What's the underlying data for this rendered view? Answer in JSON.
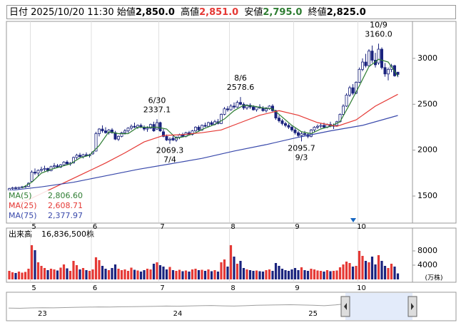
{
  "header": {
    "date_label": "日付",
    "date": "2025/10/20 11:30",
    "open_label": "始値",
    "open": "2,850.0",
    "high_label": "高値",
    "high": "2,851.0",
    "low_label": "安値",
    "low": "2,795.0",
    "close_label": "終値",
    "close": "2,825.0"
  },
  "chart_data": [
    {
      "type": "candlestick",
      "up_color": "#ffffff",
      "down_color": "#1a237e",
      "ylim": [
        1213,
        3403
      ],
      "yticks": [
        1500,
        2000,
        2500,
        3000
      ],
      "categories": [
        null,
        null,
        null,
        null,
        null,
        null,
        null,
        "5",
        null,
        null,
        null,
        null,
        null,
        null,
        null,
        null,
        null,
        null,
        null,
        null,
        null,
        null,
        null,
        null,
        null,
        null,
        "6",
        null,
        null,
        null,
        null,
        null,
        null,
        null,
        null,
        null,
        null,
        null,
        null,
        null,
        null,
        null,
        null,
        null,
        null,
        null,
        null,
        "7",
        null,
        null,
        null,
        null,
        null,
        null,
        null,
        null,
        null,
        null,
        null,
        null,
        null,
        null,
        null,
        null,
        null,
        null,
        null,
        null,
        null,
        "8",
        null,
        null,
        null,
        null,
        null,
        null,
        null,
        null,
        null,
        null,
        null,
        null,
        null,
        null,
        null,
        null,
        null,
        null,
        null,
        "9",
        null,
        null,
        null,
        null,
        null,
        null,
        null,
        null,
        null,
        null,
        null,
        null,
        null,
        null,
        null,
        null,
        null,
        null,
        null,
        "10",
        null,
        null,
        null,
        null,
        null,
        null,
        null,
        null,
        null,
        null,
        null,
        null
      ],
      "ohlc": [
        [
          1560,
          1590,
          1550,
          1580
        ],
        [
          1580,
          1600,
          1570,
          1590
        ],
        [
          1590,
          1605,
          1575,
          1585
        ],
        [
          1585,
          1600,
          1570,
          1595
        ],
        [
          1595,
          1610,
          1585,
          1600
        ],
        [
          1600,
          1615,
          1590,
          1605
        ],
        [
          1605,
          1650,
          1600,
          1640
        ],
        [
          1660,
          1780,
          1655,
          1760
        ],
        [
          1760,
          1800,
          1730,
          1750
        ],
        [
          1750,
          1790,
          1720,
          1780
        ],
        [
          1780,
          1820,
          1760,
          1790
        ],
        [
          1790,
          1830,
          1770,
          1800
        ],
        [
          1800,
          1810,
          1760,
          1775
        ],
        [
          1775,
          1830,
          1770,
          1820
        ],
        [
          1820,
          1860,
          1800,
          1830
        ],
        [
          1830,
          1850,
          1810,
          1815
        ],
        [
          1815,
          1850,
          1805,
          1840
        ],
        [
          1840,
          1880,
          1830,
          1870
        ],
        [
          1870,
          1890,
          1840,
          1850
        ],
        [
          1850,
          1870,
          1830,
          1860
        ],
        [
          1860,
          1930,
          1855,
          1920
        ],
        [
          1920,
          1960,
          1900,
          1945
        ],
        [
          1945,
          1970,
          1920,
          1930
        ],
        [
          1930,
          1960,
          1910,
          1950
        ],
        [
          1950,
          1975,
          1930,
          1940
        ],
        [
          1940,
          1960,
          1920,
          1950
        ],
        [
          1960,
          1990,
          1950,
          1980
        ],
        [
          1990,
          2200,
          1985,
          2180
        ],
        [
          2180,
          2240,
          2150,
          2230
        ],
        [
          2230,
          2270,
          2190,
          2210
        ],
        [
          2210,
          2250,
          2180,
          2190
        ],
        [
          2190,
          2230,
          2170,
          2220
        ],
        [
          2220,
          2240,
          2180,
          2190
        ],
        [
          2190,
          2210,
          2110,
          2120
        ],
        [
          2120,
          2160,
          2100,
          2150
        ],
        [
          2150,
          2200,
          2140,
          2190
        ],
        [
          2190,
          2230,
          2170,
          2210
        ],
        [
          2210,
          2250,
          2190,
          2240
        ],
        [
          2240,
          2280,
          2220,
          2260
        ],
        [
          2260,
          2300,
          2240,
          2250
        ],
        [
          2250,
          2280,
          2230,
          2270
        ],
        [
          2270,
          2290,
          2240,
          2250
        ],
        [
          2250,
          2270,
          2210,
          2230
        ],
        [
          2230,
          2260,
          2200,
          2240
        ],
        [
          2240,
          2290,
          2230,
          2280
        ],
        [
          2280,
          2310,
          2200,
          2210
        ],
        [
          2230,
          2337.1,
          2220,
          2300
        ],
        [
          2300,
          2310,
          2200,
          2210
        ],
        [
          2200,
          2230,
          2140,
          2150
        ],
        [
          2150,
          2170,
          2100,
          2110
        ],
        [
          2110,
          2140,
          2069.3,
          2120
        ],
        [
          2130,
          2160,
          2100,
          2110
        ],
        [
          2110,
          2150,
          2090,
          2140
        ],
        [
          2140,
          2180,
          2120,
          2170
        ],
        [
          2170,
          2190,
          2140,
          2150
        ],
        [
          2150,
          2200,
          2140,
          2190
        ],
        [
          2190,
          2210,
          2160,
          2170
        ],
        [
          2170,
          2220,
          2160,
          2210
        ],
        [
          2210,
          2260,
          2200,
          2250
        ],
        [
          2250,
          2270,
          2200,
          2220
        ],
        [
          2220,
          2280,
          2210,
          2270
        ],
        [
          2270,
          2300,
          2250,
          2260
        ],
        [
          2260,
          2310,
          2250,
          2300
        ],
        [
          2300,
          2320,
          2270,
          2280
        ],
        [
          2280,
          2330,
          2270,
          2310
        ],
        [
          2310,
          2340,
          2280,
          2290
        ],
        [
          2290,
          2400,
          2285,
          2390
        ],
        [
          2390,
          2470,
          2380,
          2450
        ],
        [
          2450,
          2480,
          2420,
          2440
        ],
        [
          2440,
          2500,
          2430,
          2480
        ],
        [
          2480,
          2520,
          2450,
          2470
        ],
        [
          2470,
          2540,
          2460,
          2520
        ],
        [
          2520,
          2578.6,
          2490,
          2500
        ],
        [
          2500,
          2520,
          2440,
          2460
        ],
        [
          2460,
          2500,
          2440,
          2490
        ],
        [
          2490,
          2510,
          2450,
          2470
        ],
        [
          2470,
          2490,
          2430,
          2440
        ],
        [
          2440,
          2480,
          2420,
          2470
        ],
        [
          2470,
          2500,
          2450,
          2460
        ],
        [
          2460,
          2480,
          2420,
          2430
        ],
        [
          2430,
          2470,
          2410,
          2450
        ],
        [
          2450,
          2490,
          2440,
          2480
        ],
        [
          2480,
          2500,
          2420,
          2430
        ],
        [
          2430,
          2440,
          2330,
          2350
        ],
        [
          2350,
          2380,
          2300,
          2320
        ],
        [
          2320,
          2340,
          2270,
          2290
        ],
        [
          2290,
          2310,
          2250,
          2270
        ],
        [
          2270,
          2290,
          2230,
          2250
        ],
        [
          2250,
          2270,
          2200,
          2220
        ],
        [
          2220,
          2240,
          2170,
          2190
        ],
        [
          2190,
          2210,
          2140,
          2160
        ],
        [
          2160,
          2200,
          2095.7,
          2180
        ],
        [
          2180,
          2210,
          2150,
          2170
        ],
        [
          2170,
          2190,
          2130,
          2150
        ],
        [
          2150,
          2230,
          2140,
          2220
        ],
        [
          2220,
          2260,
          2200,
          2250
        ],
        [
          2250,
          2280,
          2230,
          2260
        ],
        [
          2260,
          2290,
          2240,
          2270
        ],
        [
          2270,
          2300,
          2240,
          2250
        ],
        [
          2250,
          2290,
          2240,
          2280
        ],
        [
          2280,
          2310,
          2250,
          2260
        ],
        [
          2260,
          2290,
          2230,
          2270
        ],
        [
          2270,
          2320,
          2260,
          2310
        ],
        [
          2310,
          2400,
          2300,
          2390
        ],
        [
          2390,
          2500,
          2380,
          2480
        ],
        [
          2480,
          2620,
          2470,
          2600
        ],
        [
          2600,
          2700,
          2580,
          2680
        ],
        [
          2680,
          2720,
          2600,
          2620
        ],
        [
          2620,
          2750,
          2610,
          2740
        ],
        [
          2740,
          2900,
          2730,
          2880
        ],
        [
          2880,
          3000,
          2860,
          2960
        ],
        [
          2960,
          3050,
          2900,
          2920
        ],
        [
          2920,
          3100,
          2910,
          3080
        ],
        [
          3080,
          3140,
          2950,
          2980
        ],
        [
          2980,
          3060,
          2900,
          2930
        ],
        [
          2950,
          3160,
          2930,
          3100
        ],
        [
          3100,
          3120,
          2880,
          2900
        ],
        [
          2900,
          2950,
          2800,
          2830
        ],
        [
          2830,
          2900,
          2760,
          2880
        ],
        [
          2880,
          2940,
          2850,
          2920
        ],
        [
          2920,
          2930,
          2800,
          2810
        ],
        [
          2850,
          2851,
          2795,
          2825
        ]
      ],
      "ma": [
        {
          "name": "MA(5)",
          "color": "#2e7d32",
          "latest": {
            "value": 2806.6,
            "label": "2,806.60"
          },
          "x": [
            4,
            7,
            10,
            13,
            16,
            19,
            22,
            25,
            28,
            31,
            34,
            37,
            40,
            43,
            46,
            49,
            52,
            55,
            58,
            61,
            64,
            67,
            70,
            73,
            76,
            79,
            82,
            85,
            88,
            91,
            94,
            97,
            100,
            103,
            106,
            109,
            112,
            115,
            118,
            121
          ],
          "values": [
            1590,
            1650,
            1750,
            1790,
            1820,
            1850,
            1915,
            1945,
            2050,
            2200,
            2180,
            2180,
            2250,
            2250,
            2250,
            2230,
            2130,
            2150,
            2190,
            2240,
            2280,
            2340,
            2430,
            2490,
            2480,
            2460,
            2450,
            2360,
            2270,
            2200,
            2180,
            2230,
            2260,
            2310,
            2500,
            2700,
            2910,
            2990,
            2960,
            2806.6
          ]
        },
        {
          "name": "MA(25)",
          "color": "#e53935",
          "latest": {
            "value": 2608.71,
            "label": "2,608.71"
          },
          "x": [
            0,
            6,
            12,
            18,
            24,
            30,
            36,
            42,
            48,
            54,
            60,
            66,
            72,
            78,
            84,
            90,
            96,
            102,
            108,
            114,
            121
          ],
          "values": [
            1390,
            1460,
            1560,
            1660,
            1760,
            1860,
            1970,
            2090,
            2160,
            2170,
            2190,
            2220,
            2300,
            2380,
            2430,
            2380,
            2300,
            2260,
            2330,
            2480,
            2608.71
          ]
        },
        {
          "name": "MA(75)",
          "color": "#3949ab",
          "latest": {
            "value": 2377.97,
            "label": "2,377.97"
          },
          "x": [
            0,
            10,
            20,
            30,
            40,
            50,
            60,
            70,
            80,
            90,
            100,
            110,
            121
          ],
          "values": [
            1560,
            1600,
            1650,
            1720,
            1790,
            1850,
            1910,
            1990,
            2060,
            2140,
            2210,
            2270,
            2377.97
          ]
        }
      ],
      "annotations": [
        {
          "date": "6/30",
          "value": 2337.1
        },
        {
          "date": "7/4",
          "value": 2069.3
        },
        {
          "date": "8/6",
          "value": 2578.6
        },
        {
          "date": "9/3",
          "value": 2095.7
        },
        {
          "date": "10/9",
          "value": {
            "value": 3160,
            "label": "3160.0"
          }
        }
      ]
    },
    {
      "type": "bar",
      "title": "出来高",
      "total": "16,836,500株",
      "unit": "(万株)",
      "up_color": "#e53935",
      "down_color": "#1a237e",
      "ylim": [
        0,
        14000
      ],
      "yticks": [
        4000,
        8000
      ],
      "values": [
        2400,
        2000,
        1800,
        2200,
        1900,
        2100,
        3000,
        9600,
        8200,
        4800,
        3800,
        3200,
        2600,
        3000,
        2800,
        2500,
        3300,
        4200,
        3100,
        2400,
        5200,
        4000,
        2800,
        3200,
        2600,
        2400,
        2800,
        6200,
        5400,
        3800,
        3000,
        2600,
        3200,
        4200,
        3000,
        2600,
        2800,
        2400,
        3300,
        2700,
        2500,
        2200,
        2600,
        3000,
        2800,
        4400,
        4800,
        4000,
        3600,
        2800,
        3500,
        2600,
        2400,
        2700,
        2300,
        2500,
        2200,
        2800,
        3000,
        2600,
        2700,
        2400,
        2800,
        2300,
        2600,
        2200,
        4800,
        5600,
        3600,
        9600,
        6400,
        4400,
        5200,
        3200,
        2800,
        2600,
        2400,
        2500,
        2300,
        2200,
        2600,
        2800,
        2400,
        4600,
        3800,
        3000,
        2600,
        2400,
        2800,
        3200,
        2600,
        3400,
        2600,
        2400,
        3000,
        2800,
        2500,
        2400,
        2200,
        2600,
        2300,
        2400,
        2500,
        3400,
        4200,
        5000,
        4600,
        3600,
        3800,
        8000,
        6600,
        5200,
        4800,
        6400,
        4200,
        6800,
        5200,
        3800,
        3200,
        4400,
        3600,
        1683.65
      ]
    },
    {
      "type": "area",
      "color": "#9e9e9e",
      "fill": "#b3c6ee",
      "ylim": [
        0,
        3200
      ],
      "categories": [
        null,
        null,
        null,
        "23",
        null,
        null,
        null,
        null,
        null,
        null,
        null,
        null,
        null,
        null,
        null,
        "24",
        null,
        null,
        null,
        null,
        null,
        null,
        null,
        null,
        null,
        null,
        null,
        "25",
        null,
        null,
        null,
        null,
        null,
        null,
        null,
        null
      ],
      "values": [
        1400,
        1380,
        1420,
        1450,
        1430,
        1470,
        1500,
        1520,
        1550,
        1540,
        1560,
        1580,
        1600,
        1620,
        1650,
        1640,
        1660,
        1700,
        1720,
        1680,
        1650,
        1700,
        1750,
        1780,
        1800,
        1820,
        1790,
        1750,
        1700,
        1800,
        1950,
        2200,
        2300,
        2200,
        2500,
        2825
      ]
    }
  ]
}
